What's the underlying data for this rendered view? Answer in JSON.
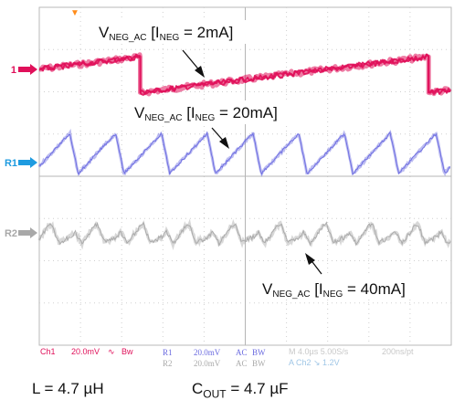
{
  "chart_data": {
    "type": "line",
    "grid": true,
    "trigger_marker": "▼",
    "channels": [
      {
        "marker": "1",
        "color": "#e0105a",
        "name": "Ch1"
      },
      {
        "marker": "R1",
        "color": "#6b6be0",
        "name": "R1"
      },
      {
        "marker": "R2",
        "color": "#a8a8a8",
        "name": "R2"
      }
    ],
    "series": [
      {
        "channel": "1",
        "condition": "I_NEG = 2mA",
        "shape": "sawtooth ramp up, sharp drop",
        "x": [
          0,
          0.47,
          0.47,
          1.0
        ],
        "y_div": [
          -0.55,
          0.3,
          -0.55,
          0.3
        ]
      },
      {
        "channel": "R1",
        "condition": "I_NEG = 20mA",
        "shape": "sawtooth",
        "cycles": 9,
        "amplitude_div": 0.95
      },
      {
        "channel": "R2",
        "condition": "I_NEG = 40mA",
        "shape": "noisy sawtooth",
        "cycles": 18,
        "amplitude_div": 0.6
      }
    ],
    "annotations": [
      {
        "main": "V",
        "sub": "NEG_AC",
        "mid": " [I",
        "sub2": "NEG",
        "tail": " = 2mA]"
      },
      {
        "main": "V",
        "sub": "NEG_AC",
        "mid": " [I",
        "sub2": "NEG",
        "tail": " = 20mA]"
      },
      {
        "main": "V",
        "sub": "NEG_AC",
        "mid": " [I",
        "sub2": "NEG",
        "tail": " = 40mA]"
      }
    ],
    "status_bar": {
      "ch1": "Ch1",
      "ch1_scale": "20.0mV",
      "ch1_coupling": "∿",
      "ch1_bw": "Bw",
      "r1": "R1",
      "r1_scale": "20.0mV",
      "r1_coupling": "AC",
      "r1_bw": "BW",
      "r2": "R2",
      "r2_scale": "20.0mV",
      "r2_coupling": "AC",
      "r2_bw": "BW",
      "timebase": "M 4.0µs 5.00S/s",
      "sample": "200ns/pt",
      "trigger": "A Ch2 ↘ 1.2V"
    }
  },
  "caption": {
    "inductor": "L = 4.7 µH",
    "cap_prefix": "C",
    "cap_sub": "OUT",
    "cap_value": " = 4.7 µF"
  }
}
